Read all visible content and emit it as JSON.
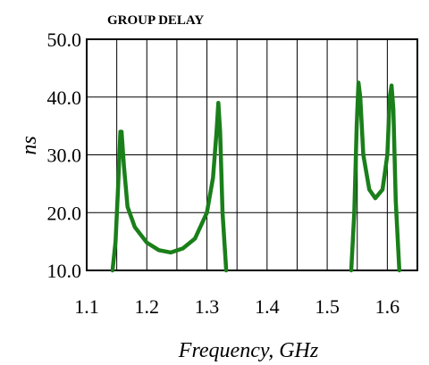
{
  "chart_data": {
    "type": "line",
    "title": "GROUP DELAY",
    "xlabel": "Frequency, GHz",
    "ylabel": "ns",
    "xlim": [
      1.1,
      1.65
    ],
    "ylim": [
      10.0,
      50.0
    ],
    "x_ticks": [
      "1.1",
      "1.2",
      "1.3",
      "1.4",
      "1.5",
      "1.6"
    ],
    "x_tick_values": [
      1.1,
      1.2,
      1.3,
      1.4,
      1.5,
      1.6
    ],
    "y_ticks": [
      "10.0",
      "20.0",
      "30.0",
      "40.0",
      "50.0"
    ],
    "y_tick_values": [
      10,
      20,
      30,
      40,
      50
    ],
    "grid": true,
    "line_color": "#1a7f1a",
    "series": [
      {
        "points": [
          [
            1.143,
            10.0
          ],
          [
            1.148,
            15.0
          ],
          [
            1.152,
            24.0
          ],
          [
            1.156,
            34.0
          ],
          [
            1.158,
            34.0
          ],
          [
            1.162,
            28.0
          ],
          [
            1.168,
            21.0
          ],
          [
            1.18,
            17.5
          ],
          [
            1.2,
            14.8
          ],
          [
            1.22,
            13.5
          ],
          [
            1.24,
            13.1
          ],
          [
            1.26,
            13.8
          ],
          [
            1.28,
            15.5
          ],
          [
            1.3,
            20.0
          ],
          [
            1.31,
            26.0
          ],
          [
            1.316,
            34.0
          ],
          [
            1.319,
            39.0
          ],
          [
            1.322,
            34.0
          ],
          [
            1.326,
            20.0
          ],
          [
            1.332,
            10.0
          ]
        ]
      },
      {
        "points": [
          [
            1.54,
            10.0
          ],
          [
            1.545,
            20.0
          ],
          [
            1.549,
            35.0
          ],
          [
            1.552,
            42.5
          ],
          [
            1.555,
            40.0
          ],
          [
            1.56,
            30.0
          ],
          [
            1.57,
            24.0
          ],
          [
            1.58,
            22.5
          ],
          [
            1.592,
            24.0
          ],
          [
            1.6,
            30.0
          ],
          [
            1.604,
            40.0
          ],
          [
            1.607,
            42.0
          ],
          [
            1.61,
            38.0
          ],
          [
            1.614,
            22.0
          ],
          [
            1.62,
            10.0
          ]
        ]
      }
    ]
  }
}
